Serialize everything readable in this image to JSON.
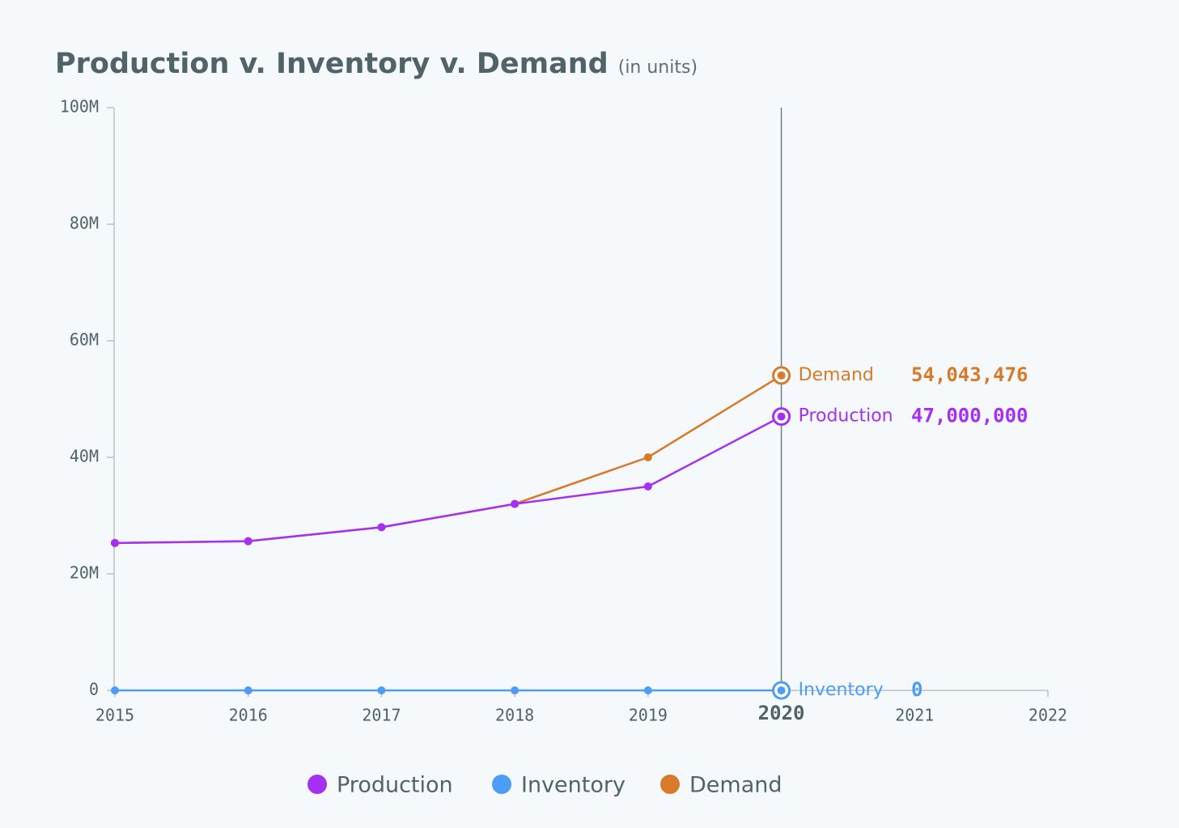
{
  "chart_data": {
    "type": "line",
    "title": "Production v. Inventory v. Demand",
    "subtitle": "(in units)",
    "x": [
      2015,
      2016,
      2017,
      2018,
      2019,
      2020
    ],
    "xlim": [
      2015,
      2022
    ],
    "xticks": [
      2015,
      2016,
      2017,
      2018,
      2019,
      2020,
      2021,
      2022
    ],
    "ylim": [
      0,
      100000000
    ],
    "yticks": [
      0,
      {
        "value": 20000000,
        "label": "20M"
      },
      {
        "value": 40000000,
        "label": "40M"
      },
      {
        "value": 60000000,
        "label": "60M"
      },
      {
        "value": 80000000,
        "label": "80M"
      },
      {
        "value": 100000000,
        "label": "100M"
      }
    ],
    "hover_x": 2020,
    "series": [
      {
        "name": "Production",
        "color": "#a52ff2",
        "values": [
          25300000,
          25600000,
          28000000,
          32000000,
          35000000,
          47000000
        ],
        "value_labels": [
          null,
          null,
          null,
          null,
          null,
          "47,000,000"
        ]
      },
      {
        "name": "Inventory",
        "color": "#4d9cf6",
        "values": [
          0,
          0,
          0,
          0,
          0,
          0
        ]
      },
      {
        "name": "Demand",
        "color": "#d77a2a",
        "values": [
          25300000,
          25600000,
          28000000,
          32000000,
          40000000,
          54043476
        ],
        "value_labels": [
          null,
          null,
          null,
          null,
          null,
          "54,043,476"
        ]
      }
    ]
  }
}
